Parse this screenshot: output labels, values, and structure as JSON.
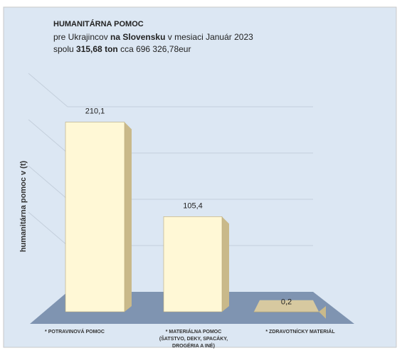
{
  "chart_data": {
    "type": "bar3d",
    "title": "HUMANITÁRNA POMOC",
    "subtitle_lines": [
      [
        {
          "text": "pre Ukrajincov ",
          "bold": false
        },
        {
          "text": "na Slovensku",
          "bold": true
        },
        {
          "text": " v mesiaci Január 2023",
          "bold": false
        }
      ],
      [
        {
          "text": "spolu ",
          "bold": false
        },
        {
          "text": "315,68 ton",
          "bold": true
        },
        {
          "text": " cca 696 326,78eur",
          "bold": false
        }
      ]
    ],
    "ylabel": "humanitárna pomoc v (t)",
    "categories": [
      "* POTRAVINOVÁ POMOC",
      "* MATERIÁLNA POMOC (ŠATSTVO, DEKY, SPACÁKY, DROGÉRIA A INÉ)",
      "* ZDRAVOTNÍCKY MATERIÁL"
    ],
    "values": [
      210.1,
      105.4,
      0.2
    ],
    "value_labels": [
      "210,1",
      "105,4",
      "0,2"
    ],
    "color": "#fff8d6",
    "side_color": "#c9b98a",
    "ylim": [
      0,
      250
    ],
    "yticks": [
      50,
      100,
      150,
      200
    ],
    "grid": true
  }
}
